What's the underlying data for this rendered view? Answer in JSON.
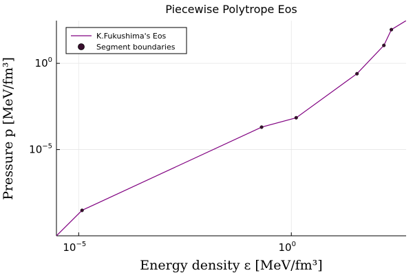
{
  "chart_data": {
    "type": "line",
    "title": "Piecewise Polytrope Eos",
    "xlabel": "Energy density ε [MeV/fm³]",
    "ylabel": "Pressure p [MeV/fm³]",
    "xscale": "log",
    "yscale": "log",
    "xlim": [
      3e-06,
      500
    ],
    "ylim": [
      1e-10,
      300
    ],
    "x_ticks": [
      {
        "value": 1e-05,
        "base": "10",
        "exp": "−5"
      },
      {
        "value": 1,
        "base": "10",
        "exp": "0"
      }
    ],
    "y_ticks": [
      {
        "value": 1e-05,
        "base": "10",
        "exp": "−5"
      },
      {
        "value": 1,
        "base": "10",
        "exp": "0"
      }
    ],
    "grid": true,
    "legend_position": "top-left",
    "series": [
      {
        "name": "K.Fukushima's Eos",
        "kind": "line",
        "color": "#800080",
        "x": [
          3e-06,
          1.2e-05,
          0.2,
          1.3,
          35,
          150,
          225,
          500
        ],
        "y": [
          1e-10,
          3e-09,
          0.0002,
          0.0007,
          0.25,
          11,
          90,
          300
        ]
      },
      {
        "name": "Segment boundaries",
        "kind": "scatter",
        "color": "#3a0f2e",
        "x": [
          1.2e-05,
          0.2,
          1.3,
          35,
          150,
          225
        ],
        "y": [
          3e-09,
          0.0002,
          0.0007,
          0.25,
          11,
          90
        ]
      }
    ]
  }
}
